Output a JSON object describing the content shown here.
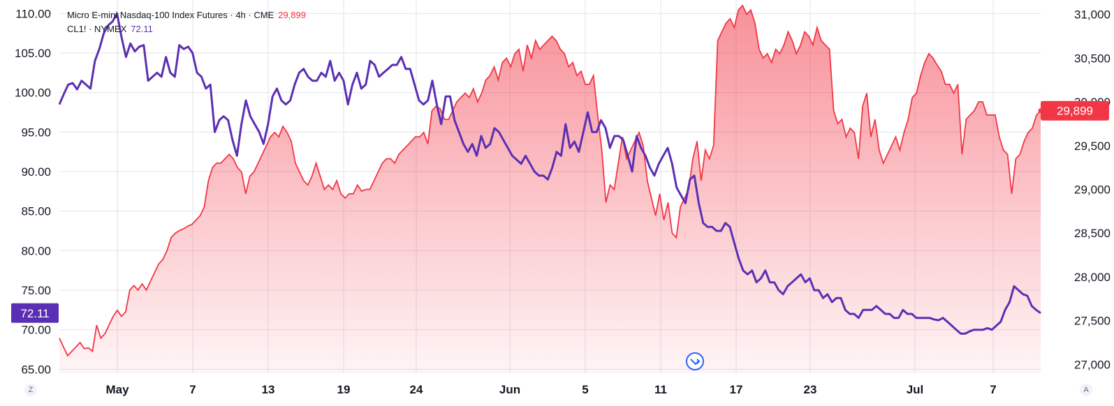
{
  "legend": {
    "series_a_label": "Micro E-mini Nasdaq-100 Index Futures · 4h · CME",
    "series_a_value": "29,899",
    "series_b_label": "CL1! · NYMEX",
    "series_b_value": "72.11"
  },
  "corner_left": "Z",
  "corner_right": "A",
  "colors": {
    "series_a": "#f23645",
    "series_b": "#5b2fb3",
    "grid": "#e0e3eb"
  },
  "chart_data": {
    "type": "line",
    "x_tick_labels": [
      "May",
      "7",
      "13",
      "19",
      "24",
      "Jun",
      "5",
      "11",
      "17",
      "23",
      "Jul",
      "7"
    ],
    "left_axis": {
      "ticks": [
        "65.00",
        "70.00",
        "75.00",
        "80.00",
        "85.00",
        "90.00",
        "95.00",
        "100.00",
        "105.00",
        "110.00"
      ],
      "range": [
        64.5,
        111
      ]
    },
    "right_axis": {
      "ticks": [
        "27,000",
        "27,500",
        "28,000",
        "28,500",
        "29,000",
        "29,500",
        "30,000",
        "30,500",
        "31,000"
      ],
      "range": [
        26900,
        31100
      ]
    },
    "last_value_badges": {
      "left": "72.11",
      "right": "29,899"
    },
    "series": [
      {
        "name": "Micro E-mini Nasdaq-100 Index Futures",
        "axis": "right",
        "style": "area",
        "values": [
          27300,
          27200,
          27100,
          27150,
          27200,
          27250,
          27180,
          27190,
          27150,
          27450,
          27300,
          27350,
          27450,
          27550,
          27620,
          27550,
          27600,
          27850,
          27900,
          27850,
          27920,
          27850,
          27950,
          28050,
          28150,
          28200,
          28300,
          28450,
          28500,
          28530,
          28550,
          28580,
          28600,
          28650,
          28700,
          28800,
          29100,
          29250,
          29300,
          29300,
          29350,
          29400,
          29350,
          29250,
          29200,
          28950,
          29150,
          29200,
          29300,
          29400,
          29500,
          29600,
          29650,
          29600,
          29720,
          29650,
          29550,
          29300,
          29200,
          29100,
          29050,
          29150,
          29300,
          29150,
          29000,
          29050,
          29000,
          29100,
          28950,
          28900,
          28950,
          28950,
          29050,
          28980,
          29000,
          29000,
          29100,
          29200,
          29300,
          29350,
          29350,
          29300,
          29400,
          29450,
          29500,
          29550,
          29600,
          29600,
          29650,
          29520,
          29900,
          29950,
          29920,
          29800,
          29800,
          29900,
          30000,
          30050,
          30100,
          30050,
          30150,
          30000,
          30100,
          30250,
          30300,
          30400,
          30250,
          30450,
          30500,
          30400,
          30550,
          30600,
          30350,
          30650,
          30500,
          30700,
          30600,
          30650,
          30700,
          30750,
          30700,
          30600,
          30550,
          30400,
          30450,
          30300,
          30350,
          30200,
          30200,
          30300,
          29850,
          29450,
          28850,
          29050,
          29000,
          29300,
          29600,
          29350,
          29450,
          29550,
          29650,
          29500,
          29100,
          28900,
          28700,
          28950,
          28650,
          28850,
          28500,
          28450,
          28800,
          28900,
          29000,
          29350,
          29550,
          29100,
          29450,
          29350,
          29500,
          30700,
          30800,
          30900,
          30950,
          30850,
          31050,
          31100,
          31000,
          31050,
          30900,
          30600,
          30500,
          30550,
          30450,
          30600,
          30550,
          30650,
          30800,
          30700,
          30550,
          30650,
          30800,
          30750,
          30650,
          30850,
          30700,
          30650,
          30600,
          29900,
          29750,
          29800,
          29600,
          29700,
          29650,
          29350,
          29950,
          30100,
          29600,
          29800,
          29450,
          29300,
          29400,
          29500,
          29600,
          29450,
          29650,
          29800,
          30050,
          30100,
          30300,
          30450,
          30550,
          30500,
          30420,
          30350,
          30200,
          30200,
          30100,
          30200,
          29400,
          29800,
          29850,
          29900,
          30000,
          30000,
          29850,
          29850,
          29850,
          29600,
          29450,
          29400,
          28950,
          29350,
          29400,
          29550,
          29650,
          29700,
          29850,
          29899
        ]
      },
      {
        "name": "CL1!",
        "axis": "left",
        "style": "line",
        "values": [
          98.5,
          99.8,
          101,
          101.2,
          100.4,
          101.5,
          101,
          100.5,
          104,
          105.5,
          107.5,
          108.5,
          109,
          110,
          107,
          104.5,
          106.2,
          105.2,
          105.8,
          106,
          101.5,
          102,
          102.5,
          102,
          104.5,
          102.5,
          102,
          106,
          105.5,
          105.8,
          105,
          102.5,
          102,
          100.5,
          101,
          95,
          96.5,
          97,
          96.5,
          94,
          92,
          96,
          99,
          97,
          96,
          95,
          93.5,
          96,
          99.5,
          100.5,
          99,
          98.5,
          99,
          101,
          102.5,
          103,
          102,
          101.5,
          101.5,
          102.5,
          102,
          104,
          101.5,
          102.5,
          101.5,
          98.5,
          101,
          102.5,
          100.5,
          101,
          104,
          103.5,
          102,
          102.5,
          103,
          103.5,
          103.5,
          104.5,
          103,
          103,
          101,
          99,
          98.5,
          99,
          101.5,
          98.5,
          96,
          99.5,
          99.5,
          96.5,
          95,
          93.5,
          92.5,
          93.5,
          92,
          94.5,
          93,
          93.5,
          95.5,
          95,
          94,
          93,
          92,
          91.5,
          91,
          92,
          91,
          90,
          89.5,
          89.5,
          89,
          90.5,
          92.5,
          92,
          96,
          93,
          93.8,
          92.5,
          95,
          97.5,
          95,
          95,
          96.5,
          95.5,
          93,
          94.5,
          94.5,
          94,
          92,
          90,
          94.5,
          93,
          92,
          90.5,
          89.5,
          91,
          92,
          93,
          91,
          88,
          87,
          86,
          89,
          89.5,
          86,
          83.5,
          83,
          83,
          82.5,
          82.5,
          83.5,
          83,
          81,
          79,
          77.5,
          77,
          77.5,
          76,
          76.5,
          77.5,
          76,
          76,
          75,
          74.5,
          75.5,
          76,
          76.5,
          77,
          76,
          76.5,
          75,
          75,
          74,
          74.5,
          73.5,
          74,
          74,
          72.5,
          72,
          72,
          71.5,
          72.5,
          72.5,
          72.5,
          73,
          72.5,
          72,
          72,
          71.5,
          71.5,
          72.5,
          72,
          72,
          71.5,
          71.5,
          71.5,
          71.5,
          71.3,
          71.2,
          71.5,
          71,
          70.5,
          70,
          69.5,
          69.5,
          69.8,
          70,
          70,
          70,
          70.2,
          70,
          70.5,
          71,
          72.5,
          73.5,
          75.5,
          75,
          74.5,
          74.3,
          73,
          72.5,
          72.11
        ]
      }
    ]
  }
}
